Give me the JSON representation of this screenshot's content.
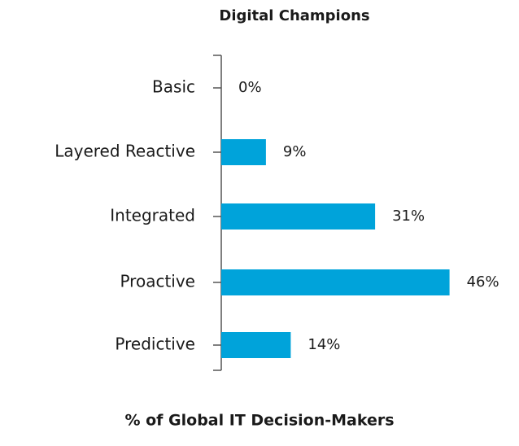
{
  "chart_data": {
    "type": "bar",
    "orientation": "horizontal",
    "title": "Digital Champions",
    "x_label": "% of Global IT Decision-Makers",
    "categories": [
      "Basic",
      "Layered Reactive",
      "Integrated",
      "Proactive",
      "Predictive"
    ],
    "values": [
      0,
      9,
      31,
      46,
      14
    ],
    "value_labels": [
      "0%",
      "9%",
      "31%",
      "46%",
      "14%"
    ],
    "color": "#00a3da"
  }
}
